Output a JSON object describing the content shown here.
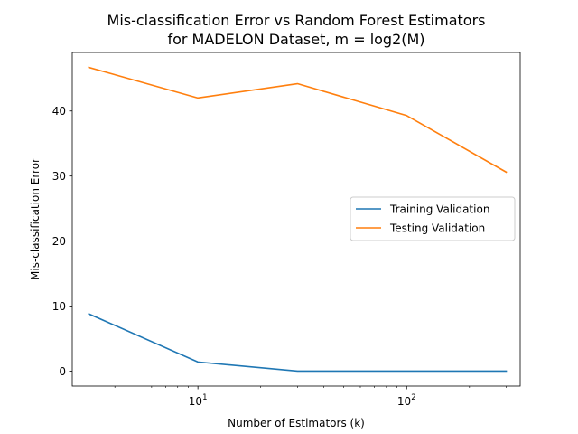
{
  "chart_data": {
    "type": "line",
    "title_line1": "Mis-classification Error vs Random Forest Estimators",
    "title_line2": "for MADELON Dataset, m = log2(M)",
    "xlabel": "Number of Estimators (k)",
    "ylabel": "Mis-classification Error",
    "xscale": "log",
    "xlim": [
      2.5,
      350
    ],
    "ylim": [
      -2.3,
      49
    ],
    "xticks": [
      {
        "value": 10,
        "base": "10",
        "exp": "1"
      },
      {
        "value": 100,
        "base": "10",
        "exp": "2"
      }
    ],
    "yticks": [
      0,
      10,
      20,
      30,
      40
    ],
    "grid": false,
    "legend_position": "center-right",
    "x": [
      3,
      10,
      30,
      100,
      300
    ],
    "series": [
      {
        "name": "Training Validation",
        "color": "#1f77b4",
        "values": [
          8.8,
          1.4,
          0.0,
          0.0,
          0.0
        ]
      },
      {
        "name": "Testing Validation",
        "color": "#ff7f0e",
        "values": [
          46.7,
          42.0,
          44.2,
          39.3,
          30.6
        ]
      }
    ]
  }
}
